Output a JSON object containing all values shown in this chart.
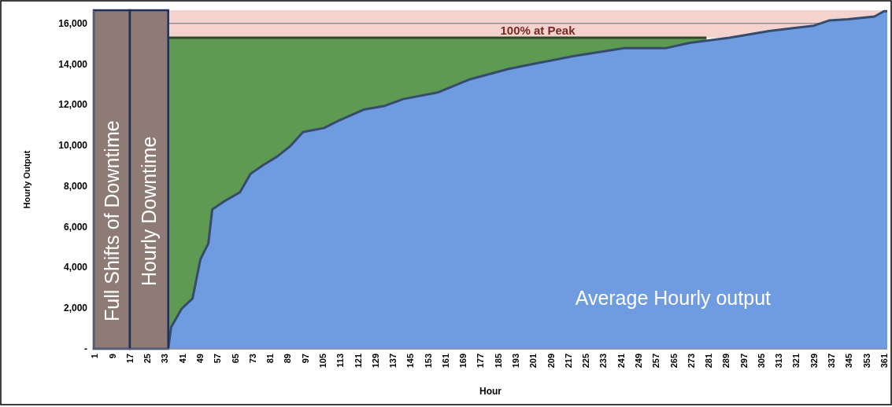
{
  "chart_data": {
    "type": "area",
    "xlabel": "Hour",
    "ylabel": "Hourly Output",
    "xlim": [
      0.5,
      362.5
    ],
    "ylim": [
      0,
      16650
    ],
    "xticks": [
      1,
      9,
      17,
      25,
      33,
      41,
      49,
      57,
      65,
      73,
      81,
      89,
      97,
      105,
      113,
      121,
      129,
      137,
      145,
      153,
      161,
      169,
      177,
      185,
      193,
      201,
      209,
      217,
      225,
      233,
      241,
      249,
      257,
      265,
      273,
      281,
      289,
      297,
      305,
      313,
      321,
      329,
      337,
      345,
      353,
      361
    ],
    "yticks": [
      {
        "value": 0,
        "label": "-"
      },
      {
        "value": 2000,
        "label": "2,000"
      },
      {
        "value": 4000,
        "label": "4,000"
      },
      {
        "value": 6000,
        "label": "6,000"
      },
      {
        "value": 8000,
        "label": "8,000"
      },
      {
        "value": 10000,
        "label": "10,000"
      },
      {
        "value": 12000,
        "label": "12,000"
      },
      {
        "value": 14000,
        "label": "14,000"
      },
      {
        "value": 16000,
        "label": "16,000"
      }
    ],
    "grid": "y",
    "series": [
      {
        "color": "#5e9a52",
        "x": [
          34.5,
          280
        ],
        "values": [
          15300,
          15300
        ]
      },
      {
        "color": "#6f9be0",
        "x": [
          34.5,
          35.8,
          40.6,
          45.6,
          49.2,
          52.8,
          54.6,
          60,
          67.2,
          72,
          78,
          84,
          90,
          96,
          105.6,
          112.8,
          123.6,
          133.3,
          141.6,
          157.3,
          171.7,
          189.7,
          201.7,
          219.7,
          231.7,
          242.5,
          261.7,
          272.5,
          290.6,
          308.6,
          329,
          336.2,
          344.6,
          356.7,
          361,
          362.5
        ],
        "values": [
          0,
          1060,
          1970,
          2480,
          4410,
          5180,
          6860,
          7250,
          7700,
          8600,
          9050,
          9440,
          9950,
          10660,
          10860,
          11250,
          11760,
          11950,
          12280,
          12600,
          13240,
          13760,
          14020,
          14400,
          14600,
          14790,
          14790,
          15050,
          15300,
          15630,
          15890,
          16150,
          16210,
          16340,
          16600,
          16600
        ]
      }
    ],
    "bands": [
      {
        "axis": "y",
        "from": 15300,
        "to": 16650,
        "label": "100% at Peak",
        "color": "#f4d2cd"
      },
      {
        "axis": "x",
        "from": 0.5,
        "to": 17,
        "label": "Full Shifts of Downtime",
        "color": "#8e7b75"
      },
      {
        "axis": "x",
        "from": 17,
        "to": 34.5,
        "label": "Hourly Downtime",
        "color": "#8e7b75"
      }
    ],
    "annotations": [
      "Average Hourly output"
    ]
  }
}
